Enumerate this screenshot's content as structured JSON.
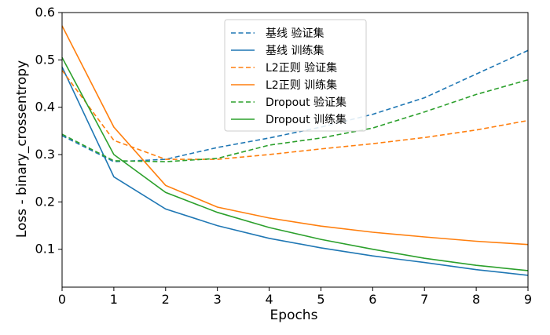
{
  "chart_data": {
    "type": "line",
    "xlabel": "Epochs",
    "ylabel": "Loss - binary_crossentropy",
    "xlim": [
      0,
      9
    ],
    "ylim": [
      0.02,
      0.6
    ],
    "x_ticks": [
      "0",
      "1",
      "2",
      "3",
      "4",
      "5",
      "6",
      "7",
      "8",
      "9"
    ],
    "y_ticks": [
      "0.1",
      "0.2",
      "0.3",
      "0.4",
      "0.5",
      "0.6"
    ],
    "grid": false,
    "legend_position": "top-center",
    "x": [
      0,
      1,
      2,
      3,
      4,
      5,
      6,
      7,
      8,
      9
    ],
    "series": [
      {
        "name": "基线 验证集",
        "color": "#1f77b4",
        "dash": true,
        "values": [
          0.34,
          0.285,
          0.29,
          0.315,
          0.335,
          0.358,
          0.385,
          0.42,
          0.47,
          0.52
        ]
      },
      {
        "name": "基线 训练集",
        "color": "#1f77b4",
        "dash": false,
        "values": [
          0.485,
          0.253,
          0.185,
          0.15,
          0.123,
          0.103,
          0.086,
          0.072,
          0.057,
          0.045
        ]
      },
      {
        "name": "L2正则 验证集",
        "color": "#ff7f0e",
        "dash": true,
        "values": [
          0.478,
          0.33,
          0.29,
          0.29,
          0.3,
          0.312,
          0.323,
          0.336,
          0.352,
          0.372
        ]
      },
      {
        "name": "L2正则 训练集",
        "color": "#ff7f0e",
        "dash": false,
        "values": [
          0.572,
          0.358,
          0.235,
          0.189,
          0.166,
          0.149,
          0.136,
          0.126,
          0.117,
          0.11
        ]
      },
      {
        "name": "Dropout 验证集",
        "color": "#2ca02c",
        "dash": true,
        "values": [
          0.343,
          0.287,
          0.285,
          0.292,
          0.32,
          0.335,
          0.356,
          0.39,
          0.427,
          0.458
        ]
      },
      {
        "name": "Dropout 训练集",
        "color": "#2ca02c",
        "dash": false,
        "values": [
          0.505,
          0.3,
          0.22,
          0.178,
          0.146,
          0.121,
          0.1,
          0.081,
          0.066,
          0.055
        ]
      }
    ]
  }
}
